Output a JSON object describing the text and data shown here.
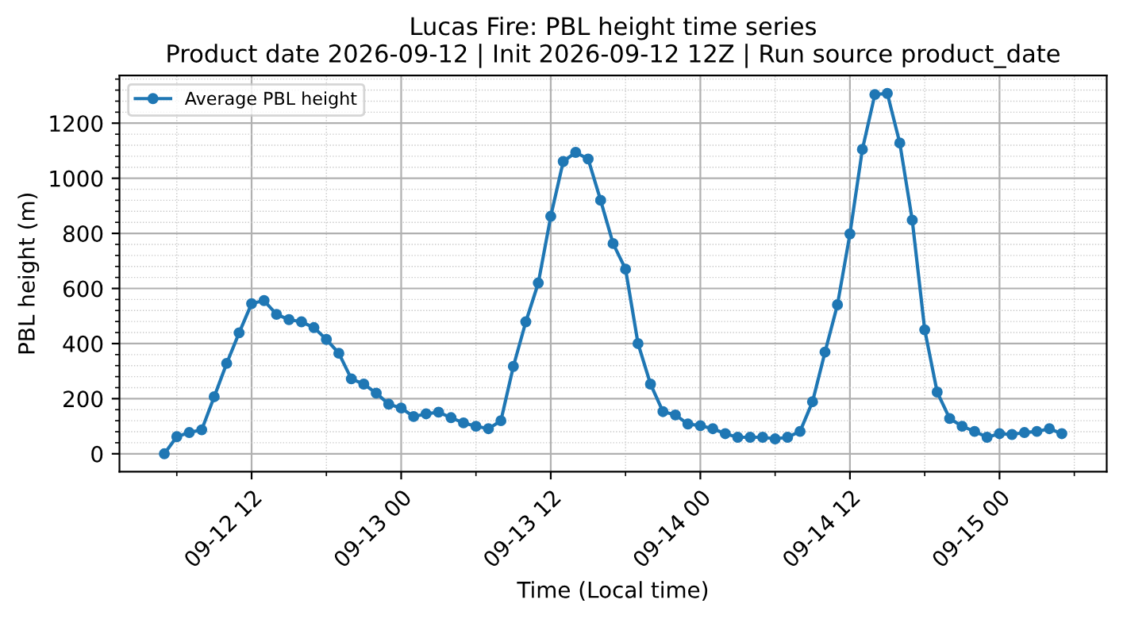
{
  "chart_data": {
    "type": "line",
    "title": "Lucas Fire: PBL height time series\nProduct date 2026-09-12 | Init 2026-09-12 12Z | Run source product_date",
    "xlabel": "Time (Local time)",
    "ylabel": "PBL height (m)",
    "x": [
      "2026-09-12T05:00",
      "2026-09-12T06:00",
      "2026-09-12T07:00",
      "2026-09-12T08:00",
      "2026-09-12T09:00",
      "2026-09-12T10:00",
      "2026-09-12T11:00",
      "2026-09-12T12:00",
      "2026-09-12T13:00",
      "2026-09-12T14:00",
      "2026-09-12T15:00",
      "2026-09-12T16:00",
      "2026-09-12T17:00",
      "2026-09-12T18:00",
      "2026-09-12T19:00",
      "2026-09-12T20:00",
      "2026-09-12T21:00",
      "2026-09-12T22:00",
      "2026-09-12T23:00",
      "2026-09-13T00:00",
      "2026-09-13T01:00",
      "2026-09-13T02:00",
      "2026-09-13T03:00",
      "2026-09-13T04:00",
      "2026-09-13T05:00",
      "2026-09-13T06:00",
      "2026-09-13T07:00",
      "2026-09-13T08:00",
      "2026-09-13T09:00",
      "2026-09-13T10:00",
      "2026-09-13T11:00",
      "2026-09-13T12:00",
      "2026-09-13T13:00",
      "2026-09-13T14:00",
      "2026-09-13T15:00",
      "2026-09-13T16:00",
      "2026-09-13T17:00",
      "2026-09-13T18:00",
      "2026-09-13T19:00",
      "2026-09-13T20:00",
      "2026-09-13T21:00",
      "2026-09-13T22:00",
      "2026-09-13T23:00",
      "2026-09-14T00:00",
      "2026-09-14T01:00",
      "2026-09-14T02:00",
      "2026-09-14T03:00",
      "2026-09-14T04:00",
      "2026-09-14T05:00",
      "2026-09-14T06:00",
      "2026-09-14T07:00",
      "2026-09-14T08:00",
      "2026-09-14T09:00",
      "2026-09-14T10:00",
      "2026-09-14T11:00",
      "2026-09-14T12:00",
      "2026-09-14T13:00",
      "2026-09-14T14:00",
      "2026-09-14T15:00",
      "2026-09-14T16:00",
      "2026-09-14T17:00",
      "2026-09-14T18:00",
      "2026-09-14T19:00",
      "2026-09-14T20:00",
      "2026-09-14T21:00",
      "2026-09-14T22:00",
      "2026-09-14T23:00",
      "2026-09-15T00:00",
      "2026-09-15T01:00",
      "2026-09-15T02:00",
      "2026-09-15T03:00",
      "2026-09-15T04:00",
      "2026-09-15T05:00"
    ],
    "series": [
      {
        "name": "Average PBL height",
        "color": "#1f77b4",
        "values": [
          0,
          62,
          77,
          87,
          207,
          328,
          439,
          545,
          556,
          506,
          487,
          479,
          458,
          415,
          365,
          272,
          253,
          220,
          180,
          166,
          135,
          145,
          151,
          131,
          112,
          100,
          91,
          120,
          317,
          479,
          620,
          862,
          1061,
          1094,
          1070,
          920,
          763,
          670,
          400,
          253,
          153,
          141,
          108,
          102,
          91,
          73,
          60,
          60,
          60,
          54,
          60,
          81,
          189,
          369,
          541,
          798,
          1105,
          1304,
          1308,
          1128,
          848,
          450,
          224,
          128,
          100,
          81,
          60,
          73,
          70,
          77,
          81,
          91,
          73
        ]
      }
    ],
    "xlim": [
      "2026-09-12T01:24",
      "2026-09-15T08:36"
    ],
    "xticks": [
      {
        "value": "2026-09-12T06:00",
        "label": null
      },
      {
        "value": "2026-09-12T12:00",
        "label": "09-12 12"
      },
      {
        "value": "2026-09-12T18:00",
        "label": null
      },
      {
        "value": "2026-09-13T00:00",
        "label": "09-13 00"
      },
      {
        "value": "2026-09-13T06:00",
        "label": null
      },
      {
        "value": "2026-09-13T12:00",
        "label": "09-13 12"
      },
      {
        "value": "2026-09-13T18:00",
        "label": null
      },
      {
        "value": "2026-09-14T00:00",
        "label": "09-14 00"
      },
      {
        "value": "2026-09-14T06:00",
        "label": null
      },
      {
        "value": "2026-09-14T12:00",
        "label": "09-14 12"
      },
      {
        "value": "2026-09-14T18:00",
        "label": null
      },
      {
        "value": "2026-09-15T00:00",
        "label": "09-15 00"
      },
      {
        "value": "2026-09-15T06:00",
        "label": null
      }
    ],
    "ylim": [
      -65,
      1373
    ],
    "yticks": [
      0,
      {
        "value": 40,
        "label": null
      },
      {
        "value": 80,
        "label": null
      },
      {
        "value": 120,
        "label": null
      },
      {
        "value": 160,
        "label": null
      },
      200,
      {
        "value": 240,
        "label": null
      },
      {
        "value": 280,
        "label": null
      },
      {
        "value": 320,
        "label": null
      },
      {
        "value": 360,
        "label": null
      },
      400,
      {
        "value": 440,
        "label": null
      },
      {
        "value": 480,
        "label": null
      },
      {
        "value": 520,
        "label": null
      },
      {
        "value": 560,
        "label": null
      },
      600,
      {
        "value": 640,
        "label": null
      },
      {
        "value": 680,
        "label": null
      },
      {
        "value": 720,
        "label": null
      },
      {
        "value": 760,
        "label": null
      },
      800,
      {
        "value": 840,
        "label": null
      },
      {
        "value": 880,
        "label": null
      },
      {
        "value": 920,
        "label": null
      },
      {
        "value": 960,
        "label": null
      },
      1000,
      {
        "value": 1040,
        "label": null
      },
      {
        "value": 1080,
        "label": null
      },
      {
        "value": 1120,
        "label": null
      },
      {
        "value": 1160,
        "label": null
      },
      1200,
      {
        "value": 1240,
        "label": null
      },
      {
        "value": 1280,
        "label": null
      },
      {
        "value": 1320,
        "label": null
      },
      {
        "value": 1360,
        "label": null
      }
    ],
    "grid": true,
    "legend": "top left",
    "marker": "circle",
    "line_style": "solid"
  }
}
